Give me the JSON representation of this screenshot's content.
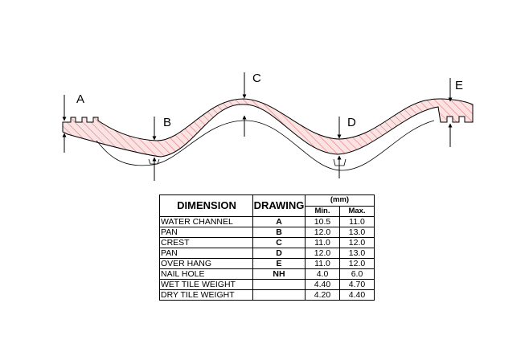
{
  "labels": {
    "a": "A",
    "b": "B",
    "c": "C",
    "d": "D",
    "e": "E"
  },
  "table": {
    "headers": {
      "dimension": "DIMENSION",
      "drawing": "DRAWING",
      "unit": "(mm)",
      "min": "Min.",
      "max": "Max."
    },
    "rows": [
      {
        "dimension": "WATER CHANNEL",
        "drawing": "A",
        "min": "10.5",
        "max": "11.0"
      },
      {
        "dimension": "PAN",
        "drawing": "B",
        "min": "12.0",
        "max": "13.0"
      },
      {
        "dimension": "CREST",
        "drawing": "C",
        "min": "11.0",
        "max": "12.0"
      },
      {
        "dimension": "PAN",
        "drawing": "D",
        "min": "12.0",
        "max": "13.0"
      },
      {
        "dimension": "OVER HANG",
        "drawing": "E",
        "min": "11.0",
        "max": "12.0"
      },
      {
        "dimension": "NAIL HOLE",
        "drawing": "NH",
        "min": "4.0",
        "max": "6.0"
      },
      {
        "dimension": "WET TILE WEIGHT",
        "drawing": "",
        "min": "4.40",
        "max": "4.70"
      },
      {
        "dimension": "DRY TILE WEIGHT",
        "drawing": "",
        "min": "4.20",
        "max": "4.40"
      }
    ]
  },
  "colors": {
    "hatch": "#e07a7a",
    "fill": "#fbe3e3",
    "line": "#000000"
  }
}
